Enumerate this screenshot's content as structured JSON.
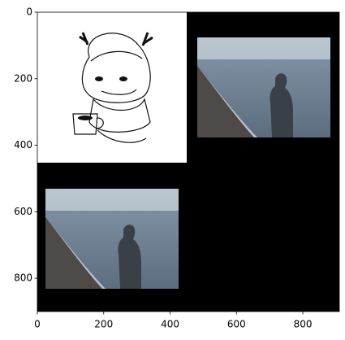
{
  "chart_data": {
    "type": "image",
    "xlim": [
      0,
      910
    ],
    "ylim": [
      900,
      0
    ],
    "xticks": [
      0,
      200,
      400,
      600,
      800
    ],
    "yticks": [
      0,
      200,
      400,
      600,
      800
    ]
  }
}
